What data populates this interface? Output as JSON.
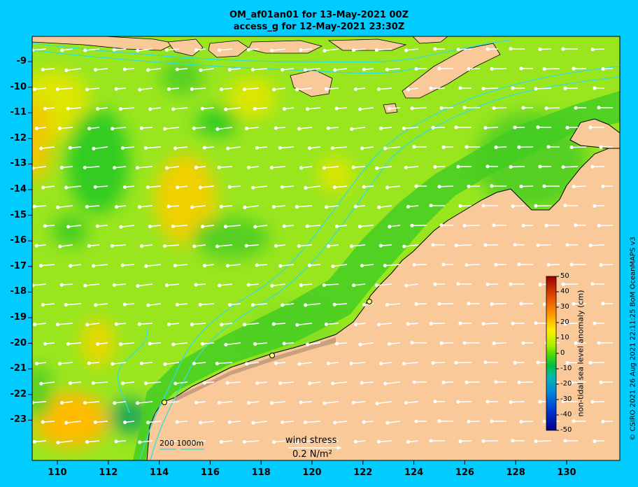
{
  "title_line1": "OM_af01an01 for 13-May-2021 00Z",
  "title_line2": "access_g for 12-May-2021 23:30Z",
  "y_axis_labels": [
    "-9",
    "-10",
    "-11",
    "-12",
    "-13",
    "-14",
    "-15",
    "-16",
    "-17",
    "-18",
    "-19",
    "-20",
    "-21",
    "-22",
    "-23"
  ],
  "x_axis_labels": [
    "110",
    "112",
    "114",
    "116",
    "118",
    "120",
    "122",
    "124",
    "126",
    "128",
    "130"
  ],
  "colorbar": {
    "title": "non-tidal sea level anomaly (cm)",
    "ticks": [
      "50",
      "40",
      "30",
      "20",
      "10",
      "0",
      "-10",
      "-20",
      "-30",
      "-40",
      "-50"
    ]
  },
  "wind_stress": {
    "label": "wind stress",
    "unit": "0.2 N/m²"
  },
  "depth_contours": {
    "label": "200  1000m"
  },
  "copyright": "© CSIRO 2021  26 Aug 2021 22:11:25 BoM OceanMAPS v3",
  "colors": {
    "background": "#00ccff",
    "land": "#f9c99a",
    "contour": "#33dddd",
    "arrow": "#ffffff"
  }
}
